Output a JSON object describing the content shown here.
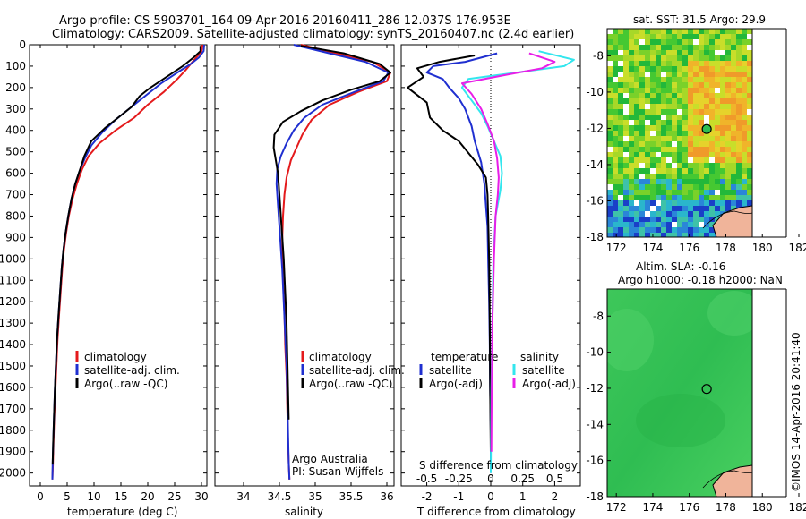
{
  "header": {
    "line1": "Argo profile: CS 5903701_164 09-Apr-2016 20160411_286 12.037S 176.953E",
    "line2": "Climatology: CARS2009. Satellite-adjusted climatology: synTS_20160407.nc (2.4d earlier)"
  },
  "colors": {
    "climatology": "#e41a1c",
    "satellite": "#1f2fd0",
    "argo": "#000000",
    "satellite_salinity": "#33e6ee",
    "argo_adj_salinity": "#e81ee8"
  },
  "chart_data": [
    {
      "type": "line",
      "id": "temperature",
      "xlabel": "temperature (deg C)",
      "xlim": [
        -2,
        31
      ],
      "xticks": [
        0,
        5,
        10,
        15,
        20,
        25,
        30
      ],
      "ylim": [
        0,
        2060
      ],
      "yticks": [
        0,
        100,
        200,
        300,
        400,
        500,
        600,
        700,
        800,
        900,
        1000,
        1100,
        1200,
        1300,
        1400,
        1500,
        1600,
        1700,
        1800,
        1900,
        2000
      ],
      "legend": [
        "climatology",
        "satellite-adj. clim.",
        "Argo(..raw -QC)"
      ],
      "series": [
        {
          "name": "climatology",
          "color_key": "climatology",
          "x": [
            30.2,
            30.0,
            29.0,
            28.0,
            27.0,
            25.5,
            23.0,
            20.0,
            17.5,
            14.0,
            11.0,
            9.0,
            7.8,
            6.8,
            6.0,
            5.3,
            4.8,
            4.4,
            4.1,
            3.8,
            3.5,
            3.2,
            3.0,
            2.8,
            2.6,
            2.45,
            2.35,
            2.25
          ],
          "y": [
            0,
            30,
            60,
            90,
            120,
            160,
            220,
            280,
            340,
            400,
            460,
            520,
            580,
            650,
            720,
            800,
            880,
            960,
            1040,
            1150,
            1260,
            1380,
            1500,
            1620,
            1740,
            1860,
            1960,
            2030
          ]
        },
        {
          "name": "satellite-adj. clim.",
          "color_key": "satellite",
          "x": [
            30.5,
            30.4,
            29.5,
            28.0,
            25.5,
            22.5,
            20.0,
            17.0,
            14.0,
            11.5,
            9.5,
            8.3,
            7.3,
            6.5,
            5.8,
            5.2,
            4.7,
            4.3,
            4.0,
            3.7,
            3.4,
            3.1,
            2.9,
            2.7,
            2.55,
            2.4,
            2.3,
            2.25
          ],
          "y": [
            0,
            30,
            60,
            90,
            130,
            180,
            230,
            290,
            350,
            410,
            470,
            530,
            590,
            650,
            720,
            800,
            880,
            960,
            1040,
            1150,
            1260,
            1380,
            1500,
            1620,
            1740,
            1860,
            1960,
            2030
          ]
        },
        {
          "name": "Argo(..raw -QC)",
          "color_key": "argo",
          "x": [
            29.8,
            29.8,
            28.5,
            26.5,
            23.5,
            20.5,
            18.5,
            17.0,
            15.0,
            12.0,
            9.5,
            8.2,
            7.3,
            6.5,
            5.8,
            5.2,
            4.7,
            4.3,
            4.0,
            3.7,
            3.4,
            3.1,
            2.9,
            2.7,
            2.55,
            2.4,
            2.3
          ],
          "y": [
            5,
            30,
            60,
            100,
            150,
            200,
            240,
            290,
            330,
            390,
            450,
            520,
            590,
            650,
            720,
            800,
            880,
            960,
            1040,
            1150,
            1260,
            1380,
            1500,
            1620,
            1740,
            1860,
            1960
          ]
        }
      ]
    },
    {
      "type": "line",
      "id": "salinity",
      "xlabel": "salinity",
      "xlim": [
        33.6,
        36.1
      ],
      "xticks": [
        34,
        34.5,
        35,
        35.5,
        36
      ],
      "ylim": [
        0,
        2060
      ],
      "legend": [
        "climatology",
        "satellite-adj. clim.",
        "Argo(..raw -QC)"
      ],
      "annotation": [
        "Argo Australia",
        "PI: Susan Wijffels"
      ],
      "series": [
        {
          "name": "climatology",
          "color_key": "climatology",
          "x": [
            34.8,
            35.3,
            35.8,
            36.05,
            36.0,
            35.6,
            35.2,
            34.95,
            34.82,
            34.74,
            34.66,
            34.6,
            34.57,
            34.55,
            34.54,
            34.54,
            34.55,
            34.57,
            34.58,
            34.6,
            34.61,
            34.62,
            34.63,
            34.64
          ],
          "y": [
            0,
            40,
            80,
            130,
            170,
            220,
            280,
            350,
            420,
            480,
            540,
            620,
            700,
            800,
            900,
            1000,
            1100,
            1250,
            1400,
            1550,
            1700,
            1850,
            1950,
            2030
          ]
        },
        {
          "name": "satellite-adj. clim.",
          "color_key": "satellite",
          "x": [
            34.7,
            35.2,
            35.7,
            36.02,
            35.95,
            35.55,
            35.1,
            34.85,
            34.7,
            34.6,
            34.52,
            34.47,
            34.46,
            34.48,
            34.5,
            34.52,
            34.54,
            34.56,
            34.58,
            34.6,
            34.61,
            34.62,
            34.63,
            34.64
          ],
          "y": [
            0,
            40,
            80,
            130,
            170,
            220,
            280,
            340,
            400,
            460,
            520,
            580,
            650,
            750,
            850,
            950,
            1050,
            1200,
            1350,
            1500,
            1650,
            1800,
            1950,
            2030
          ]
        },
        {
          "name": "Argo(..raw -QC)",
          "color_key": "argo",
          "x": [
            34.8,
            35.4,
            35.9,
            36.05,
            35.9,
            35.5,
            35.1,
            34.8,
            34.55,
            34.43,
            34.42,
            34.45,
            34.48,
            34.5,
            34.52,
            34.54,
            34.56,
            34.58,
            34.6,
            34.61,
            34.62,
            34.63
          ],
          "y": [
            5,
            40,
            90,
            130,
            170,
            210,
            260,
            310,
            360,
            420,
            480,
            540,
            600,
            700,
            800,
            900,
            1000,
            1150,
            1300,
            1450,
            1600,
            1750
          ]
        }
      ]
    },
    {
      "type": "line",
      "id": "difference",
      "xlabel_top": "S difference from climatology",
      "xlabel": "T difference from climatology",
      "xlim": [
        -2.8,
        2.8
      ],
      "xticks": [
        -2,
        -1,
        0,
        1,
        2
      ],
      "xtick_labels_top": [
        "-0.5",
        "-0.25",
        "0",
        "0.25",
        "0.5"
      ],
      "ylim": [
        0,
        2060
      ],
      "legend_temperature_title": "temperature",
      "legend_salinity_title": "salinity",
      "legend": [
        "satellite",
        "Argo(-adj)",
        "satellite",
        "Argo(-adj)"
      ],
      "series": [
        {
          "name": "satellite",
          "color_key": "satellite",
          "x": [
            0.2,
            -0.8,
            -1.8,
            -2.0,
            -1.5,
            -1.3,
            -1.0,
            -0.8,
            -0.6,
            -0.5,
            -0.3,
            -0.2,
            -0.15,
            -0.1,
            -0.08,
            -0.05,
            -0.03,
            -0.02,
            0.0,
            0.0
          ],
          "y": [
            40,
            80,
            100,
            130,
            160,
            200,
            250,
            300,
            380,
            450,
            550,
            650,
            750,
            850,
            1000,
            1200,
            1400,
            1600,
            1800,
            2000
          ]
        },
        {
          "name": "Argo(-adj)",
          "color_key": "argo",
          "x": [
            -0.5,
            -1.6,
            -2.3,
            -2.1,
            -2.6,
            -2.0,
            -1.9,
            -1.5,
            -1.0,
            -0.4,
            -0.15,
            -0.1,
            -0.08,
            -0.05,
            -0.03,
            -0.02,
            0.0
          ],
          "y": [
            50,
            80,
            110,
            150,
            200,
            270,
            340,
            400,
            450,
            560,
            620,
            700,
            800,
            1000,
            1300,
            1600,
            1900
          ]
        },
        {
          "name": "satellite",
          "color_key": "satellite_salinity",
          "x": [
            1.5,
            2.6,
            2.3,
            0.8,
            -0.7,
            -0.9,
            -0.6,
            -0.3,
            -0.1,
            0.1,
            0.3,
            0.35,
            0.3,
            0.15,
            0.08,
            0.05,
            0.02,
            0.0
          ],
          "y": [
            30,
            70,
            100,
            130,
            160,
            200,
            260,
            320,
            380,
            450,
            520,
            600,
            680,
            800,
            1000,
            1300,
            1600,
            2000
          ]
        },
        {
          "name": "Argo(-adj)",
          "color_key": "argo_adj_salinity",
          "x": [
            1.2,
            2.0,
            1.6,
            0.5,
            -0.9,
            -0.6,
            -0.3,
            -0.1,
            0.1,
            0.2,
            0.25,
            0.22,
            0.15,
            0.1,
            0.05,
            0.03,
            0.02
          ],
          "y": [
            40,
            80,
            110,
            140,
            180,
            230,
            300,
            370,
            450,
            530,
            620,
            700,
            800,
            1000,
            1300,
            1600,
            1900
          ]
        }
      ]
    },
    {
      "type": "heatmap",
      "id": "sst_map",
      "title": "sat. SST: 31.5 Argo: 29.9",
      "xlim": [
        171.5,
        182
      ],
      "xticks": [
        172,
        174,
        176,
        178,
        180,
        182
      ],
      "ylim": [
        -18,
        -6.5
      ],
      "yticks": [
        -8,
        -10,
        -12,
        -14,
        -16,
        -18
      ],
      "float_position": {
        "lon": 176.953,
        "lat": -12.037
      }
    },
    {
      "type": "heatmap",
      "id": "sla_map",
      "title": "Altim. SLA: -0.16",
      "subtitle": "Argo h1000: -0.18 h2000: NaN",
      "xlim": [
        171.5,
        182
      ],
      "xticks": [
        172,
        174,
        176,
        178,
        180,
        182
      ],
      "ylim": [
        -18,
        -6.5
      ],
      "yticks": [
        -8,
        -10,
        -12,
        -14,
        -16,
        -18
      ],
      "float_position": {
        "lon": 176.953,
        "lat": -12.037
      }
    }
  ],
  "footer": {
    "credit": "©IMOS 14-Apr-2016 20:41:40"
  }
}
